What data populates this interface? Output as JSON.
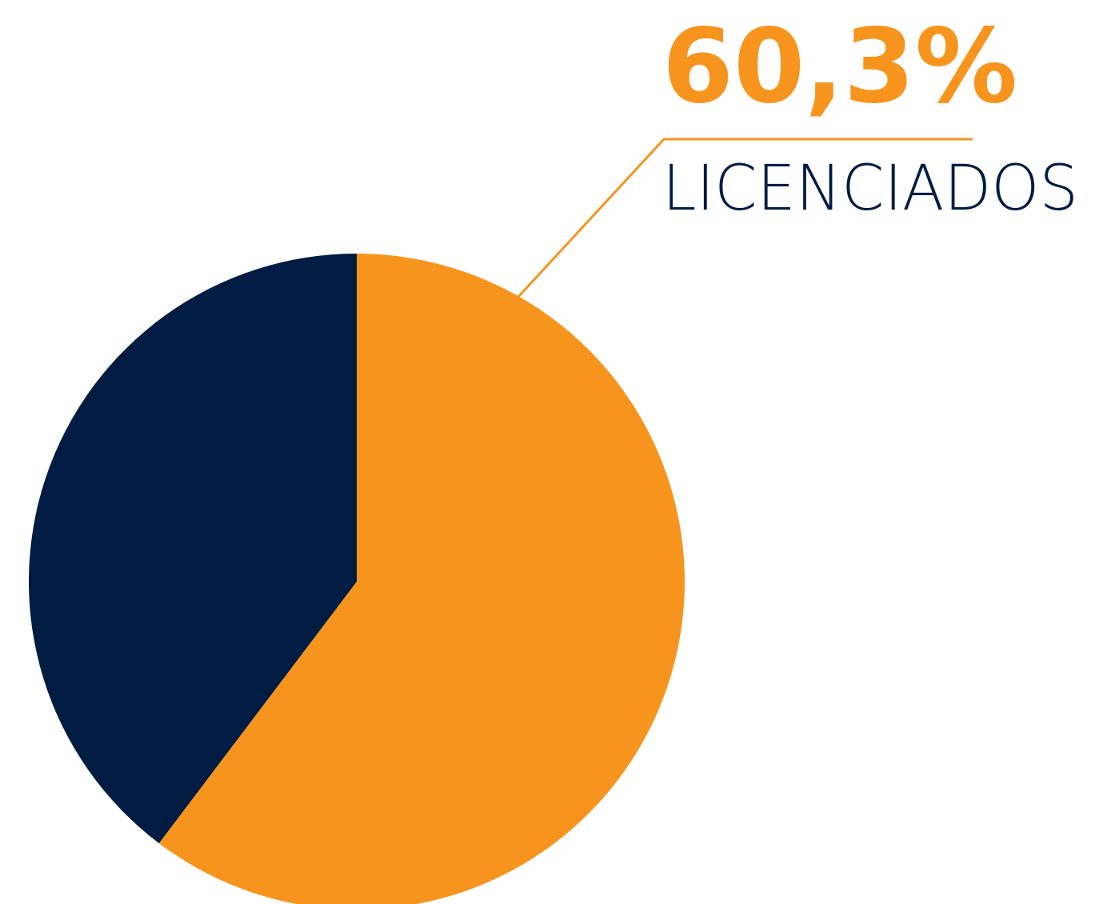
{
  "chart_data": {
    "type": "pie",
    "categories": [
      "LICENCIADOS",
      null
    ],
    "values": [
      60.3,
      39.7
    ],
    "value_labels": [
      "60,3%",
      null
    ],
    "colors": [
      "#f7941e",
      "#001c43"
    ]
  }
}
